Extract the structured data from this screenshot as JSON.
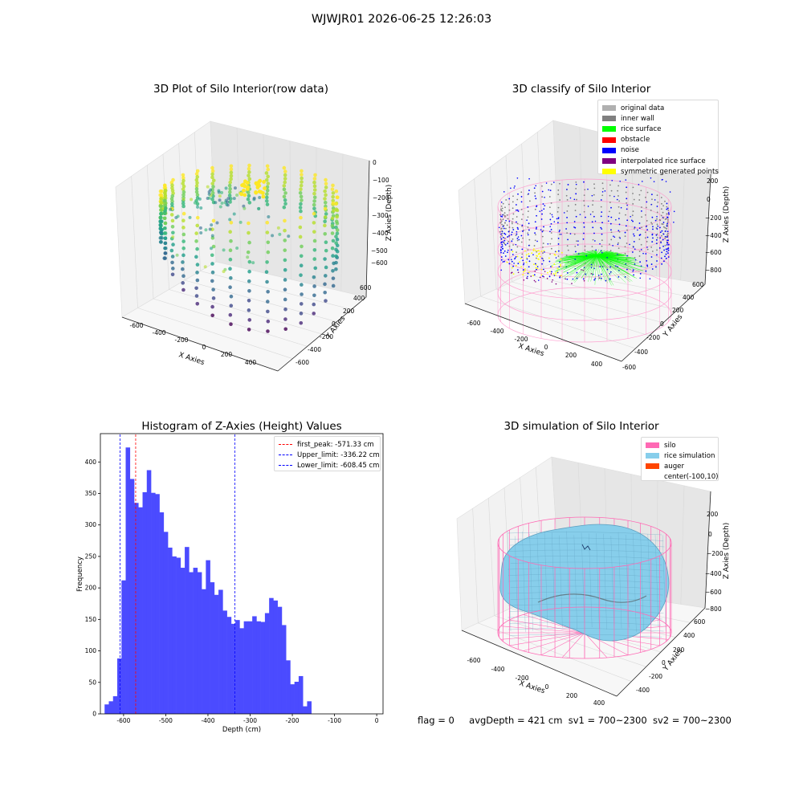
{
  "figure_title": "WJWJR01 2026-06-25 12:26:03",
  "status_bar": {
    "flag": "flag = 0",
    "avg_depth": "avgDepth = 421 cm",
    "sv1": "sv1 = 700~2300",
    "sv2": "sv2 = 700~2300"
  },
  "colors": {
    "original_data": "#b0b0b0",
    "inner_wall": "#808080",
    "rice_surface": "#00ff00",
    "obstacle": "#ff0000",
    "noise": "#0000ff",
    "interpolated_rice_surface": "#800080",
    "symmetric_generated_points": "#ffff00",
    "silo": "#ff69b4",
    "rice_simulation": "#87ceeb",
    "auger": "#ff4500",
    "hist_bars": "#4b4bff",
    "first_peak_line": "#ff0000",
    "limit_lines": "#0000ff"
  },
  "chart_data": [
    {
      "type": "scatter",
      "projection": "3d",
      "title": "3D Plot of Silo Interior(row data)",
      "xlabel": "X Axies",
      "ylabel": "Y Axies",
      "zlabel": "Z Axies (Depth)",
      "x_ticks": [
        "-600",
        "-400",
        "-200",
        "0",
        "200",
        "400"
      ],
      "y_ticks": [
        "-600",
        "-400",
        "-200",
        "0",
        "200",
        "400",
        "600"
      ],
      "z_ticks": [
        "0",
        "−100",
        "−200",
        "−300",
        "−400",
        "−500",
        "−600"
      ],
      "colormap": "viridis"
    },
    {
      "type": "scatter",
      "projection": "3d",
      "title": "3D classify of Silo Interior",
      "xlabel": "X Axies",
      "ylabel": "Y Axies",
      "zlabel": "Z Axies (Depth)",
      "x_ticks": [
        "-600",
        "-400",
        "-200",
        "0",
        "200",
        "400"
      ],
      "y_ticks": [
        "-600",
        "-400",
        "-200",
        "0",
        "200",
        "400",
        "600"
      ],
      "z_ticks": [
        "200",
        "0",
        "−200",
        "−400",
        "−600",
        "−800"
      ],
      "legend": [
        "original data",
        "inner wall",
        "rice surface",
        "obstacle",
        "noise",
        "interpolated rice surface",
        "symmetric generated points"
      ],
      "legend_position": "top-right"
    },
    {
      "type": "bar",
      "title": "Histogram of Z-Axies (Height) Values",
      "xlabel": "Depth (cm)",
      "ylabel": "Frequency",
      "xlim": [
        -655,
        15
      ],
      "ylim": [
        0,
        445
      ],
      "x_ticks": [
        "-600",
        "-500",
        "-400",
        "-300",
        "-200",
        "-100",
        "0"
      ],
      "y_ticks": [
        "0",
        "50",
        "100",
        "150",
        "200",
        "250",
        "300",
        "350",
        "400"
      ],
      "bin_start": -645,
      "bin_width": 10,
      "values": [
        15,
        20,
        28,
        88,
        212,
        423,
        373,
        335,
        328,
        352,
        387,
        351,
        349,
        320,
        289,
        264,
        250,
        248,
        232,
        265,
        225,
        232,
        225,
        198,
        244,
        209,
        189,
        197,
        164,
        154,
        143,
        149,
        136,
        147,
        147,
        155,
        147,
        146,
        160,
        184,
        180,
        170,
        141,
        85,
        47,
        51,
        60,
        12,
        20
      ],
      "vlines": [
        {
          "label": "first_peak: -571.33 cm",
          "x": -571.33,
          "style": "red"
        },
        {
          "label": "Upper_limit: -336.22 cm",
          "x": -336.22,
          "style": "blue"
        },
        {
          "label": "Lower_limit: -608.45 cm",
          "x": -608.45,
          "style": "blue"
        }
      ],
      "legend_position": "top-right",
      "grid": false
    },
    {
      "type": "surface",
      "projection": "3d",
      "title": "3D simulation of Silo Interior",
      "xlabel": "X Axies",
      "ylabel": "Y Axies",
      "zlabel": "Z Axies (Depth)",
      "x_ticks": [
        "-600",
        "-400",
        "-200",
        "0",
        "200",
        "400"
      ],
      "y_ticks": [
        "-400",
        "-200",
        "0",
        "200",
        "400",
        "600"
      ],
      "z_ticks": [
        "200",
        "0",
        "−200",
        "−400",
        "−600",
        "−800"
      ],
      "legend": [
        "silo",
        "rice simulation",
        "auger",
        "center(-100,10)"
      ],
      "legend_position": "top-right"
    }
  ]
}
